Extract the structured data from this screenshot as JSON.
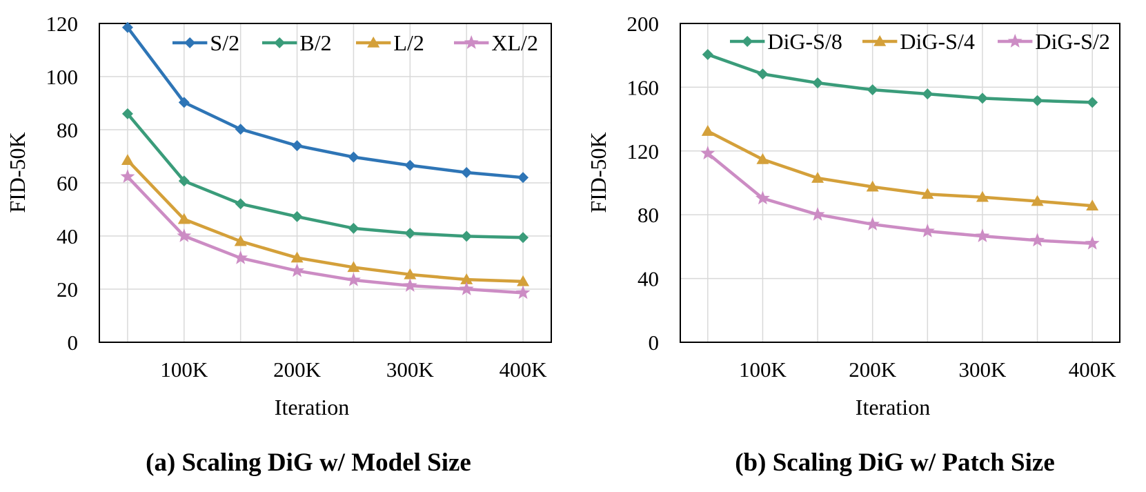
{
  "chart_data": [
    {
      "type": "line",
      "title": "(a) Scaling DiG w/ Model Size",
      "xlabel": "Iteration",
      "ylabel": "FID-50K",
      "ylim": [
        0,
        120
      ],
      "yticks": [
        "0",
        "20",
        "40",
        "60",
        "80",
        "100",
        "120"
      ],
      "x": [
        50000,
        100000,
        150000,
        200000,
        250000,
        300000,
        350000,
        400000
      ],
      "xlim": [
        25000,
        425000
      ],
      "xticks": [
        {
          "value": 100000,
          "label": "100K"
        },
        {
          "value": 200000,
          "label": "200K"
        },
        {
          "value": 300000,
          "label": "300K"
        },
        {
          "value": 400000,
          "label": "400K"
        }
      ],
      "grid": true,
      "legend": "top",
      "series": [
        {
          "name": "S/2",
          "color": "#2e75b6",
          "marker": "diamond",
          "values": [
            118.5,
            90.3,
            80.2,
            74.0,
            69.7,
            66.6,
            63.9,
            62.0
          ]
        },
        {
          "name": "B/2",
          "color": "#3a9c7a",
          "marker": "diamond",
          "values": [
            86.0,
            60.7,
            52.1,
            47.3,
            42.9,
            41.0,
            39.9,
            39.4
          ]
        },
        {
          "name": "L/2",
          "color": "#d4a03a",
          "marker": "triangle",
          "values": [
            68.5,
            46.3,
            38.0,
            31.8,
            28.2,
            25.5,
            23.6,
            22.9
          ]
        },
        {
          "name": "XL/2",
          "color": "#cc8cc4",
          "marker": "star",
          "values": [
            62.3,
            40.0,
            31.7,
            26.9,
            23.4,
            21.3,
            20.0,
            18.6
          ]
        }
      ]
    },
    {
      "type": "line",
      "title": "(b) Scaling DiG w/ Patch Size",
      "xlabel": "Iteration",
      "ylabel": "FID-50K",
      "ylim": [
        0,
        200
      ],
      "yticks": [
        "0",
        "40",
        "80",
        "120",
        "160",
        "200"
      ],
      "x": [
        50000,
        100000,
        150000,
        200000,
        250000,
        300000,
        350000,
        400000
      ],
      "xlim": [
        25000,
        425000
      ],
      "xticks": [
        {
          "value": 100000,
          "label": "100K"
        },
        {
          "value": 200000,
          "label": "200K"
        },
        {
          "value": 300000,
          "label": "300K"
        },
        {
          "value": 400000,
          "label": "400K"
        }
      ],
      "grid": true,
      "legend": "top",
      "series": [
        {
          "name": "DiG-S/8",
          "color": "#3a9c7a",
          "marker": "diamond",
          "values": [
            180.5,
            168.3,
            162.7,
            158.4,
            155.8,
            153.1,
            151.6,
            150.5
          ]
        },
        {
          "name": "DiG-S/4",
          "color": "#d4a03a",
          "marker": "triangle",
          "values": [
            132.4,
            114.7,
            103.0,
            97.5,
            92.9,
            91.0,
            88.5,
            85.6
          ]
        },
        {
          "name": "DiG-S/2",
          "color": "#cc8cc4",
          "marker": "star",
          "values": [
            118.5,
            90.3,
            80.1,
            74.0,
            69.7,
            66.6,
            63.9,
            62.0
          ]
        }
      ]
    }
  ]
}
